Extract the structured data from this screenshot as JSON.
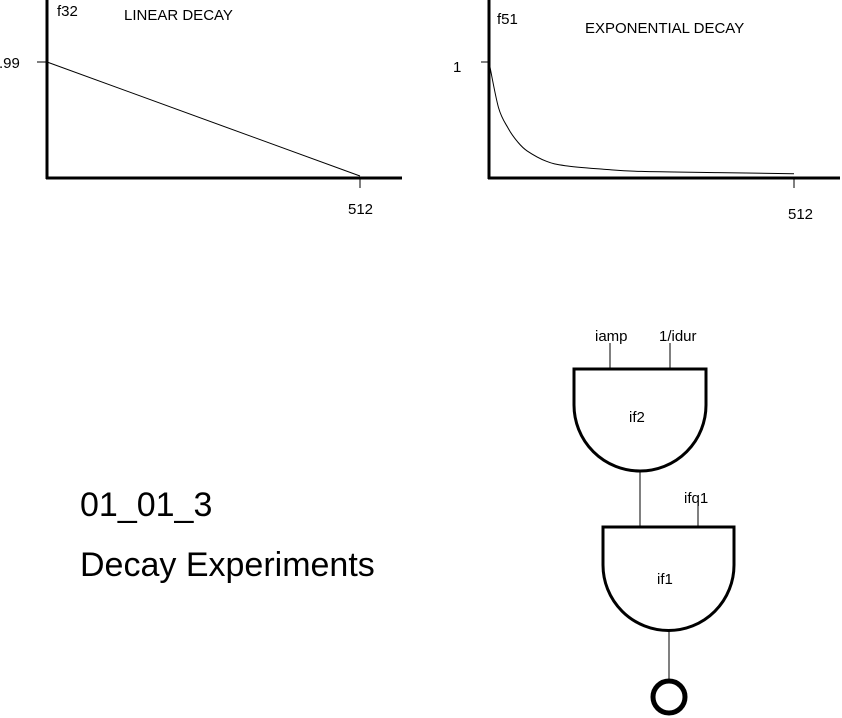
{
  "charts": {
    "linear": {
      "table_name": "f32",
      "title": "LINEAR DECAY",
      "y_start_label": ".99",
      "x_end_label": "512"
    },
    "exponential": {
      "table_name": "f51",
      "title": "EXPONENTIAL DECAY",
      "y_start_label": "1",
      "x_end_label": "512"
    }
  },
  "chart_data": [
    {
      "type": "line",
      "title": "LINEAR DECAY",
      "table": "f32",
      "x": [
        0,
        512
      ],
      "y": [
        0.99,
        0
      ],
      "xlim": [
        0,
        512
      ],
      "tick_labels": {
        "y": [
          ".99"
        ],
        "x": [
          "512"
        ]
      }
    },
    {
      "type": "line",
      "title": "EXPONENTIAL DECAY",
      "table": "f51",
      "x": [
        0,
        16,
        32,
        48,
        64,
        96,
        128,
        192,
        256,
        384,
        512
      ],
      "y": [
        1,
        0.6,
        0.42,
        0.3,
        0.22,
        0.13,
        0.09,
        0.06,
        0.04,
        0.03,
        0.02
      ],
      "xlim": [
        0,
        512
      ],
      "tick_labels": {
        "y": [
          "1"
        ],
        "x": [
          "512"
        ]
      }
    }
  ],
  "heading": {
    "number": "01_01_3",
    "subtitle": "Decay Experiments"
  },
  "flowchart": {
    "oscillator_top": {
      "label": "if2",
      "input_amp": "iamp",
      "input_freq": "1/idur"
    },
    "oscillator_bottom": {
      "label": "if1",
      "input_freq": "ifq1"
    }
  }
}
